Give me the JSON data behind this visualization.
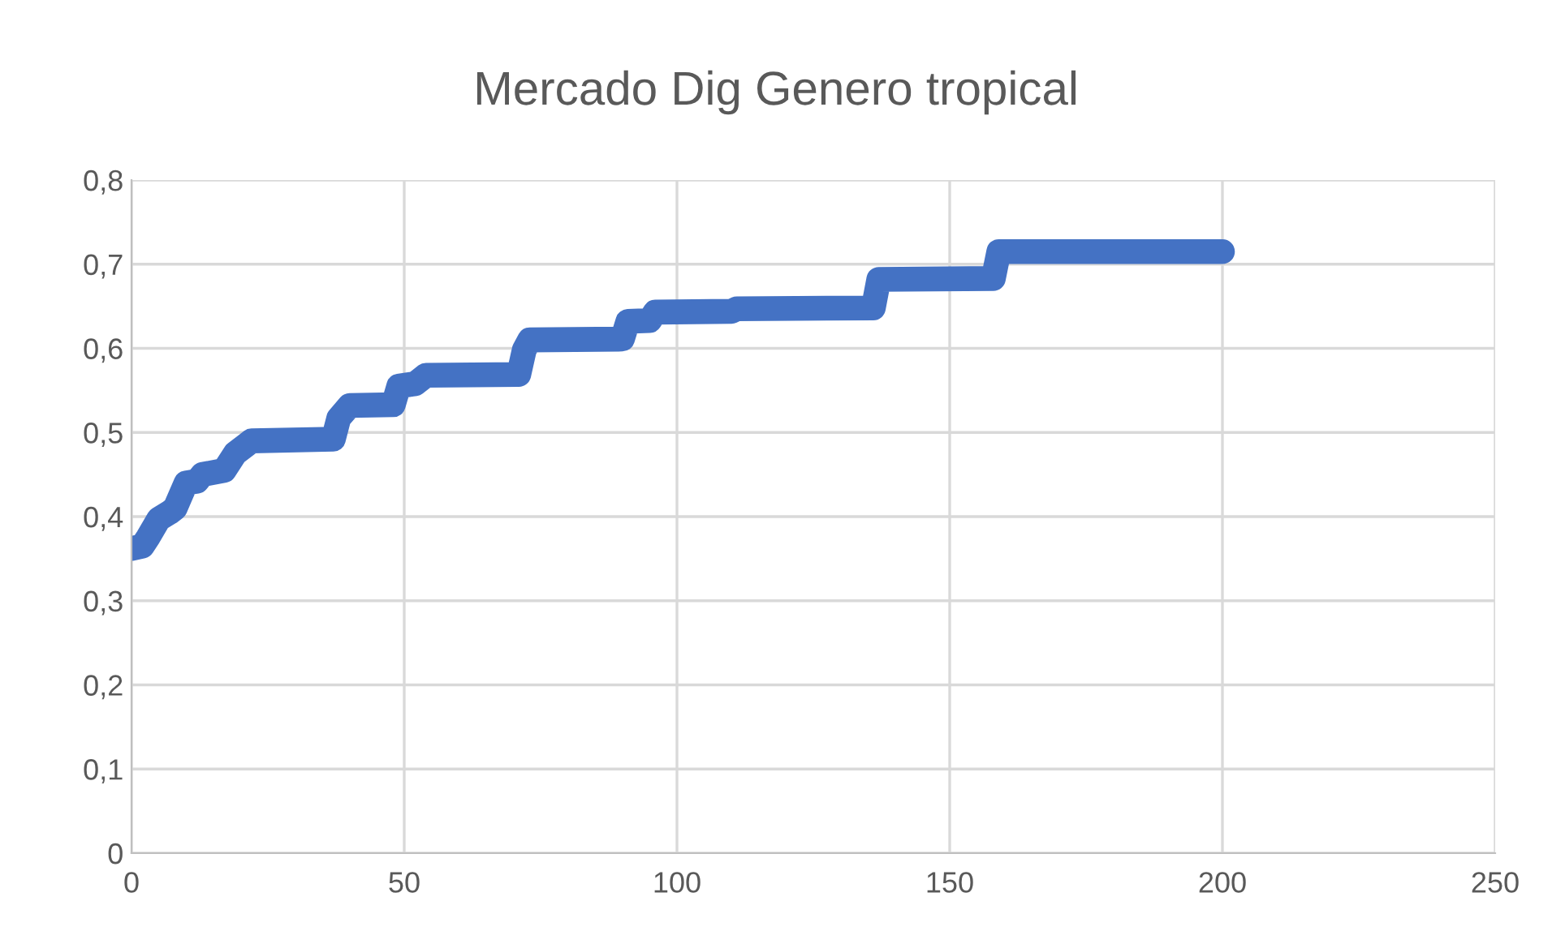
{
  "chart_data": {
    "type": "line",
    "title": "Mercado Dig Genero tropical",
    "series": [
      {
        "color": "#4472c4",
        "x": [
          0,
          2,
          3,
          5,
          7,
          8,
          10,
          12,
          13,
          17,
          19,
          21,
          22,
          37,
          38,
          40,
          48,
          49,
          52,
          54,
          71,
          72,
          73,
          90,
          91,
          95,
          96,
          110,
          111,
          136,
          137,
          158,
          159,
          200
        ],
        "values": [
          0.362,
          0.365,
          0.375,
          0.397,
          0.405,
          0.41,
          0.44,
          0.442,
          0.45,
          0.455,
          0.475,
          0.485,
          0.49,
          0.492,
          0.517,
          0.532,
          0.533,
          0.555,
          0.558,
          0.568,
          0.569,
          0.598,
          0.61,
          0.611,
          0.632,
          0.633,
          0.643,
          0.644,
          0.647,
          0.648,
          0.682,
          0.683,
          0.715,
          0.715
        ]
      }
    ],
    "xlim": [
      0,
      250
    ],
    "xticks": [
      0,
      50,
      100,
      150,
      200,
      250
    ],
    "ylim": [
      0,
      0.8
    ],
    "yticks": [
      {
        "value": 0,
        "label": "0"
      },
      {
        "value": 0.1,
        "label": "0,1"
      },
      {
        "value": 0.2,
        "label": "0,2"
      },
      {
        "value": 0.3,
        "label": "0,3"
      },
      {
        "value": 0.4,
        "label": "0,4"
      },
      {
        "value": 0.5,
        "label": "0,5"
      },
      {
        "value": 0.6,
        "label": "0,6"
      },
      {
        "value": 0.7,
        "label": "0,7"
      },
      {
        "value": 0.8,
        "label": "0,8"
      }
    ],
    "grid": true,
    "line_style": "solid"
  }
}
